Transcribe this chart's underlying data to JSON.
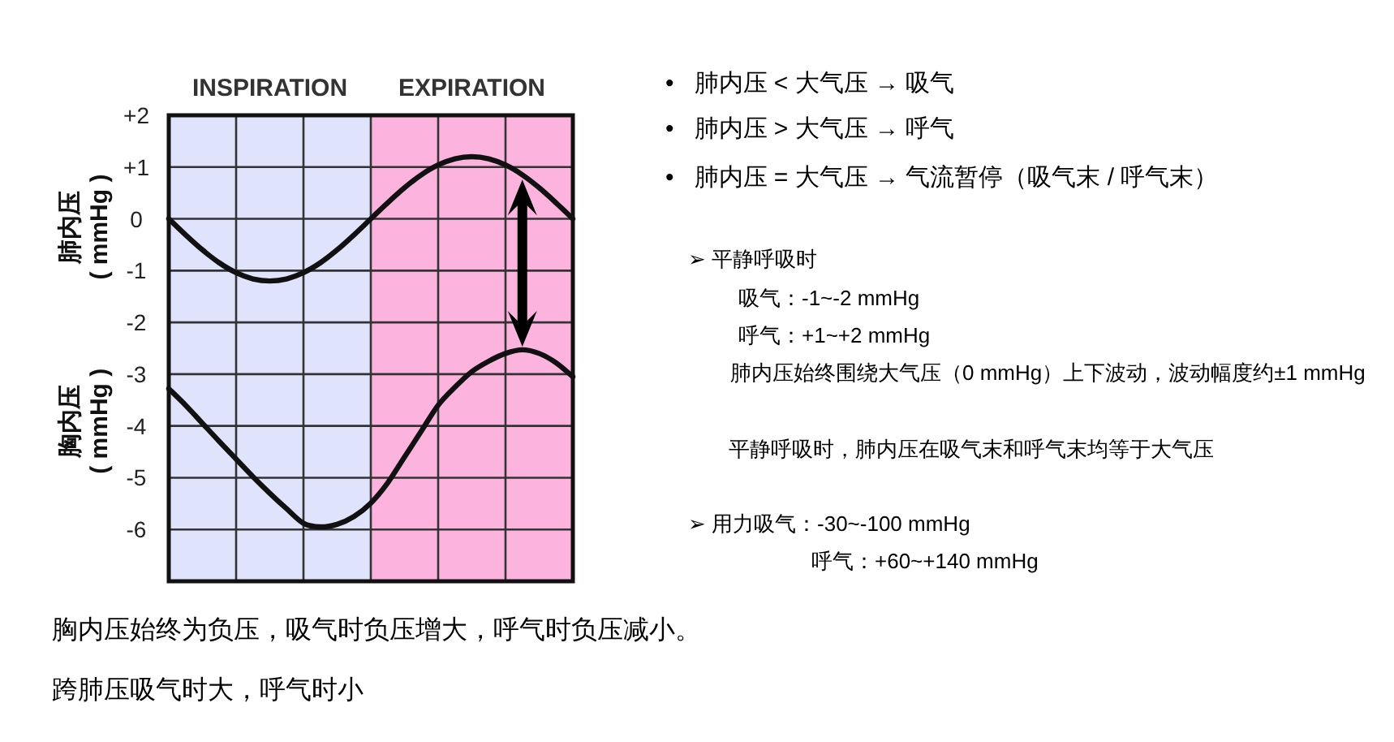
{
  "chart_data": {
    "type": "line",
    "categories": [
      null,
      null,
      null,
      null,
      null,
      null,
      null,
      null,
      null,
      null,
      null,
      null,
      null,
      null,
      null,
      null,
      null,
      null,
      null,
      null,
      null,
      null,
      null,
      null,
      null
    ],
    "series": [
      {
        "name": "肺内压 ( mmHg )",
        "color": "#111111",
        "values": [
          0,
          -0.31,
          -0.6,
          -0.85,
          -1.04,
          -1.16,
          -1.2,
          -1.16,
          -1.04,
          -0.85,
          -0.6,
          -0.31,
          0,
          0.31,
          0.6,
          0.85,
          1.04,
          1.16,
          1.2,
          1.16,
          1.04,
          0.85,
          0.6,
          0.31,
          0
        ]
      },
      {
        "name": "胸内压 ( mmHg )",
        "color": "#111111",
        "values": [
          -3.28,
          -3.6,
          -3.95,
          -4.3,
          -4.64,
          -4.98,
          -5.3,
          -5.6,
          -5.88,
          -5.95,
          -5.9,
          -5.75,
          -5.49,
          -5.1,
          -4.6,
          -4.1,
          -3.6,
          -3.25,
          -2.95,
          -2.75,
          -2.6,
          -2.53,
          -2.6,
          -2.78,
          -3.05
        ]
      }
    ],
    "ylim": [
      -7,
      2
    ],
    "yticks": [
      {
        "value": 2,
        "label": "+2"
      },
      {
        "value": 1,
        "label": "+1"
      },
      0,
      -1,
      -2,
      -3,
      -4,
      -5,
      -6
    ],
    "grid": true,
    "legend": false,
    "marker": "none",
    "line_style": "solid",
    "annotations": [
      "INSPIRATION",
      "EXPIRATION",
      "•   肺内压 < 大气压 → 吸气",
      "•   肺内压 > 大气压 → 呼气",
      "•   肺内压 = 大气压 → 气流暂停（吸气末 / 呼气末）",
      "➢ 平静呼吸时",
      "吸气：-1~-2 mmHg",
      "呼气：+1~+2 mmHg",
      "肺内压始终围绕大气压（0 mmHg）上下波动，波动幅度约±1 mmHg",
      "平静呼吸时，肺内压在吸气末和呼气末均等于大气压",
      "➢ 用力吸气：-30~-100 mmHg",
      "呼气：+60~+140 mmHg",
      "胸内压始终为负压，吸气时负压增大，呼气时负压减小。",
      "跨肺压吸气时大，呼气时小"
    ]
  }
}
